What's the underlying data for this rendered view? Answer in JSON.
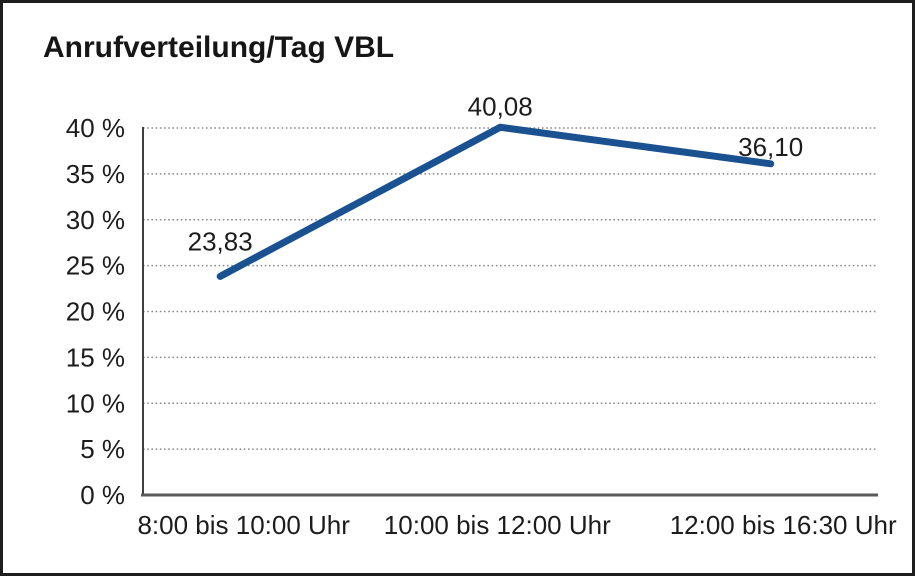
{
  "page": {
    "background_color": "#ffffff",
    "border_color": "#1e1e1e"
  },
  "chart_data": {
    "type": "line",
    "title": "Anrufverteilung/Tag VBL",
    "categories": [
      "8:00 bis 10:00 Uhr",
      "10:00 bis 12:00 Uhr",
      "12:00 bis 16:30 Uhr"
    ],
    "values": [
      23.83,
      40.08,
      36.1
    ],
    "values_display": [
      "23,83",
      "40,08",
      "36,10"
    ],
    "xlabel": "",
    "ylabel": "",
    "ylim": [
      0,
      40
    ],
    "ytick_step": 5,
    "ytick_suffix": " %",
    "ytick_labels": [
      "0 %",
      "5 %",
      "10 %",
      "15 %",
      "20 %",
      "25 %",
      "30 %",
      "35 %",
      "40 %"
    ],
    "grid": "horizontal-dotted",
    "legend_position": "none",
    "colors": {
      "line": "#1a5190",
      "grid": "#8a8a8a",
      "axis_left": "#3f3f3f",
      "axis_bottom": "#5a5a5a",
      "text": "#1c1c1c"
    }
  }
}
